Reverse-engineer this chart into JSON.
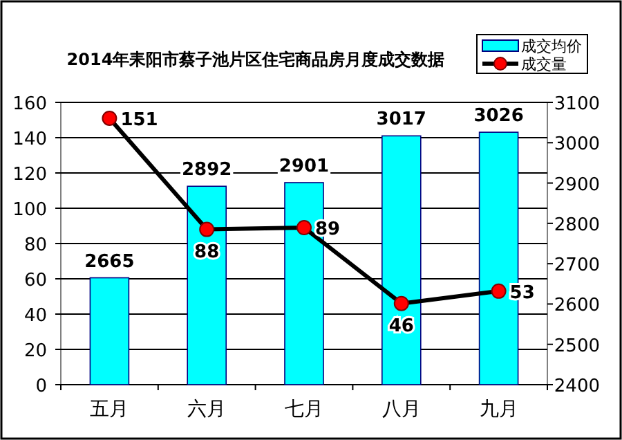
{
  "chart_data": {
    "type": "bar",
    "title": "2014年耒阳市蔡子池片区住宅商品房月度成交数据",
    "categories": [
      "五月",
      "六月",
      "七月",
      "八月",
      "九月"
    ],
    "series": [
      {
        "name": "成交均价",
        "type": "bar",
        "axis": "y2",
        "color": "#00ffff",
        "values": [
          2665,
          2892,
          2901,
          3017,
          3026
        ]
      },
      {
        "name": "成交量",
        "type": "line",
        "axis": "y",
        "color": "#ff0000",
        "marker": "circle",
        "values": [
          151,
          88,
          89,
          46,
          53
        ]
      }
    ],
    "ylim": [
      0,
      160
    ],
    "yticks": [
      0,
      20,
      40,
      60,
      80,
      100,
      120,
      140,
      160
    ],
    "y2lim": [
      2400,
      3100
    ],
    "y2ticks": [
      2400,
      2500,
      2600,
      2700,
      2800,
      2900,
      3000,
      3100
    ],
    "grid": "y",
    "legend": "top right",
    "data_labels": true
  }
}
